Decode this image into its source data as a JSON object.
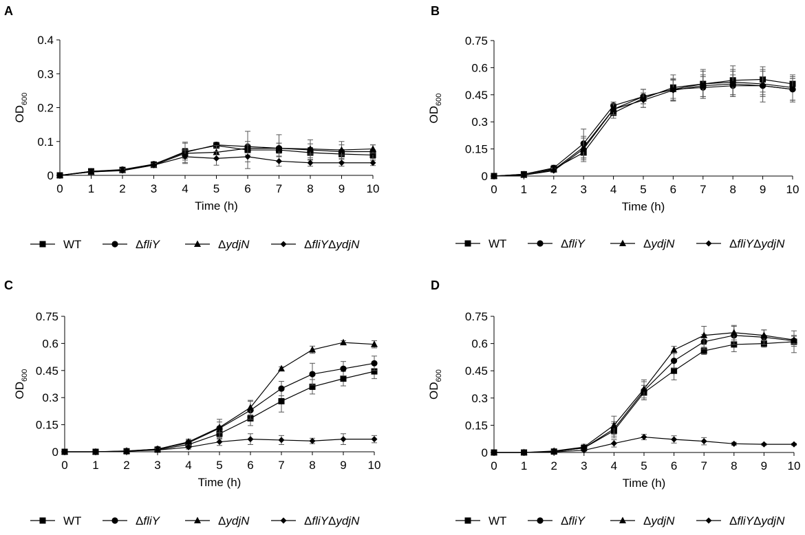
{
  "chart_data": [
    {
      "panel": "A",
      "type": "line",
      "xlabel": "Time (h)",
      "ylabel": "OD",
      "ylabel_sub": "600",
      "x": [
        0,
        1,
        2,
        3,
        4,
        5,
        6,
        7,
        8,
        9,
        10
      ],
      "xlim": [
        0,
        10
      ],
      "ylim": [
        0,
        0.4
      ],
      "yticks": [
        "0",
        "0.1",
        "0.2",
        "0.3",
        "0.4"
      ],
      "ytick_values": [
        0,
        0.1,
        0.2,
        0.3,
        0.4
      ],
      "series": [
        {
          "name": "WT",
          "marker": "square",
          "values": [
            0,
            0.012,
            0.016,
            0.032,
            0.07,
            0.088,
            0.075,
            0.075,
            0.067,
            0.063,
            0.06
          ],
          "errors": [
            0,
            0.003,
            0.004,
            0.006,
            0.025,
            0.006,
            0.015,
            0.02,
            0.015,
            0.013,
            0.015
          ]
        },
        {
          "name": "ΔfliY",
          "marker": "circle",
          "values": [
            0,
            0.012,
            0.017,
            0.033,
            0.068,
            0.09,
            0.085,
            0.08,
            0.075,
            0.07,
            0.07
          ],
          "errors": [
            0,
            0.003,
            0.004,
            0.006,
            0.03,
            0.008,
            0.045,
            0.04,
            0.03,
            0.03,
            0.02
          ]
        },
        {
          "name": "ΔydjN",
          "marker": "triangle",
          "values": [
            0,
            0.01,
            0.015,
            0.03,
            0.065,
            0.068,
            0.08,
            0.08,
            0.078,
            0.075,
            0.078
          ],
          "errors": [
            0,
            0.003,
            0.004,
            0.005,
            0.015,
            0.02,
            0.02,
            0.015,
            0.015,
            0.015,
            0.012
          ]
        },
        {
          "name": "ΔfliYΔydjN",
          "marker": "diamond",
          "values": [
            0,
            0.01,
            0.014,
            0.03,
            0.055,
            0.05,
            0.055,
            0.042,
            0.037,
            0.037,
            0.037
          ],
          "errors": [
            0,
            0.003,
            0.004,
            0.005,
            0.02,
            0.02,
            0.035,
            0.015,
            0.01,
            0.01,
            0.008
          ]
        }
      ]
    },
    {
      "panel": "B",
      "type": "line",
      "xlabel": "Time (h)",
      "ylabel": "OD",
      "ylabel_sub": "600",
      "x": [
        0,
        1,
        2,
        3,
        4,
        5,
        6,
        7,
        8,
        9,
        10
      ],
      "xlim": [
        0,
        10
      ],
      "ylim": [
        0,
        0.75
      ],
      "yticks": [
        "0",
        "0.15",
        "0.3",
        "0.45",
        "0.6",
        "0.75"
      ],
      "ytick_values": [
        0,
        0.15,
        0.3,
        0.45,
        0.6,
        0.75
      ],
      "series": [
        {
          "name": "WT",
          "marker": "square",
          "values": [
            0,
            0.01,
            0.04,
            0.13,
            0.35,
            0.43,
            0.49,
            0.51,
            0.53,
            0.535,
            0.51
          ],
          "errors": [
            0,
            0.005,
            0.01,
            0.05,
            0.03,
            0.05,
            0.07,
            0.08,
            0.08,
            0.07,
            0.03
          ]
        },
        {
          "name": "ΔfliY",
          "marker": "circle",
          "values": [
            0,
            0.01,
            0.045,
            0.18,
            0.39,
            0.44,
            0.48,
            0.49,
            0.5,
            0.5,
            0.48
          ],
          "errors": [
            0,
            0.005,
            0.015,
            0.08,
            0.02,
            0.04,
            0.06,
            0.06,
            0.06,
            0.05,
            0.06
          ]
        },
        {
          "name": "ΔydjN",
          "marker": "triangle",
          "values": [
            0,
            0.005,
            0.035,
            0.16,
            0.37,
            0.44,
            0.48,
            0.51,
            0.52,
            0.51,
            0.49
          ],
          "errors": [
            0,
            0.005,
            0.01,
            0.06,
            0.03,
            0.04,
            0.05,
            0.07,
            0.07,
            0.07,
            0.07
          ]
        },
        {
          "name": "ΔfliYΔydjN",
          "marker": "diamond",
          "values": [
            0,
            0.005,
            0.03,
            0.15,
            0.37,
            0.42,
            0.475,
            0.5,
            0.51,
            0.5,
            0.48
          ],
          "errors": [
            0,
            0.005,
            0.01,
            0.06,
            0.03,
            0.04,
            0.06,
            0.06,
            0.07,
            0.09,
            0.07
          ]
        }
      ]
    },
    {
      "panel": "C",
      "type": "line",
      "xlabel": "Time (h)",
      "ylabel": "OD",
      "ylabel_sub": "600",
      "x": [
        0,
        1,
        2,
        3,
        4,
        5,
        6,
        7,
        8,
        9,
        10
      ],
      "xlim": [
        0,
        10
      ],
      "ylim": [
        0,
        0.75
      ],
      "yticks": [
        "0",
        "0.15",
        "0.3",
        "0.45",
        "0.6",
        "0.75"
      ],
      "ytick_values": [
        0,
        0.15,
        0.3,
        0.45,
        0.6,
        0.75
      ],
      "series": [
        {
          "name": "WT",
          "marker": "square",
          "values": [
            0,
            0,
            0.003,
            0.012,
            0.04,
            0.1,
            0.185,
            0.28,
            0.36,
            0.405,
            0.445
          ],
          "errors": [
            0,
            0,
            0.002,
            0.005,
            0.015,
            0.03,
            0.04,
            0.06,
            0.04,
            0.04,
            0.04
          ]
        },
        {
          "name": "ΔfliY",
          "marker": "circle",
          "values": [
            0,
            0,
            0.004,
            0.015,
            0.05,
            0.13,
            0.23,
            0.35,
            0.43,
            0.46,
            0.49
          ],
          "errors": [
            0,
            0,
            0.002,
            0.005,
            0.015,
            0.05,
            0.05,
            0.04,
            0.06,
            0.04,
            0.04
          ]
        },
        {
          "name": "ΔydjN",
          "marker": "triangle",
          "values": [
            0,
            0,
            0.005,
            0.015,
            0.055,
            0.135,
            0.245,
            0.46,
            0.565,
            0.605,
            0.595
          ],
          "errors": [
            0,
            0,
            0.002,
            0.005,
            0.015,
            0.03,
            0.04,
            0.01,
            0.02,
            0.01,
            0.02
          ]
        },
        {
          "name": "ΔfliYΔydjN",
          "marker": "diamond",
          "values": [
            0,
            0,
            0.003,
            0.01,
            0.025,
            0.055,
            0.07,
            0.065,
            0.06,
            0.07,
            0.07
          ],
          "errors": [
            0,
            0,
            0.002,
            0.005,
            0.01,
            0.02,
            0.03,
            0.025,
            0.015,
            0.03,
            0.02
          ]
        }
      ]
    },
    {
      "panel": "D",
      "type": "line",
      "xlabel": "Time (h)",
      "ylabel": "OD",
      "ylabel_sub": "600",
      "x": [
        0,
        1,
        2,
        3,
        4,
        5,
        6,
        7,
        8,
        9,
        10
      ],
      "xlim": [
        0,
        10
      ],
      "ylim": [
        0,
        0.75
      ],
      "yticks": [
        "0",
        "0.15",
        "0.3",
        "0.45",
        "0.6",
        "0.75"
      ],
      "ytick_values": [
        0,
        0.15,
        0.3,
        0.45,
        0.6,
        0.75
      ],
      "series": [
        {
          "name": "WT",
          "marker": "square",
          "values": [
            0,
            0,
            0.005,
            0.025,
            0.12,
            0.33,
            0.45,
            0.56,
            0.595,
            0.6,
            0.61
          ],
          "errors": [
            0,
            0,
            0.002,
            0.01,
            0.04,
            0.04,
            0.05,
            0.02,
            0.04,
            0.02,
            0.06
          ]
        },
        {
          "name": "ΔfliY",
          "marker": "circle",
          "values": [
            0,
            0,
            0.005,
            0.025,
            0.13,
            0.34,
            0.505,
            0.61,
            0.645,
            0.635,
            0.615
          ],
          "errors": [
            0,
            0,
            0.002,
            0.01,
            0.04,
            0.05,
            0.04,
            0.04,
            0.05,
            0.04,
            0.03
          ]
        },
        {
          "name": "ΔydjN",
          "marker": "triangle",
          "values": [
            0,
            0,
            0.008,
            0.03,
            0.15,
            0.35,
            0.565,
            0.645,
            0.66,
            0.645,
            0.62
          ],
          "errors": [
            0,
            0,
            0.002,
            0.015,
            0.05,
            0.05,
            0.02,
            0.05,
            0.04,
            0.03,
            0.02
          ]
        },
        {
          "name": "ΔfliYΔydjN",
          "marker": "diamond",
          "values": [
            0,
            0,
            0.003,
            0.012,
            0.05,
            0.085,
            0.072,
            0.062,
            0.048,
            0.045,
            0.045
          ],
          "errors": [
            0,
            0,
            0.002,
            0.005,
            0.02,
            0.015,
            0.02,
            0.02,
            0.008,
            0.005,
            0.005
          ]
        }
      ]
    }
  ],
  "legend": [
    {
      "marker": "square",
      "parts": [
        {
          "t": "WT",
          "i": false
        }
      ]
    },
    {
      "marker": "circle",
      "parts": [
        {
          "t": "Δ",
          "i": false
        },
        {
          "t": "fliY",
          "i": true
        }
      ]
    },
    {
      "marker": "triangle",
      "parts": [
        {
          "t": "Δ",
          "i": false
        },
        {
          "t": "ydjN",
          "i": true
        }
      ]
    },
    {
      "marker": "diamond",
      "parts": [
        {
          "t": "Δ",
          "i": false
        },
        {
          "t": "fliY",
          "i": true
        },
        {
          "t": "Δ",
          "i": false
        },
        {
          "t": "ydjN",
          "i": true
        }
      ]
    }
  ]
}
